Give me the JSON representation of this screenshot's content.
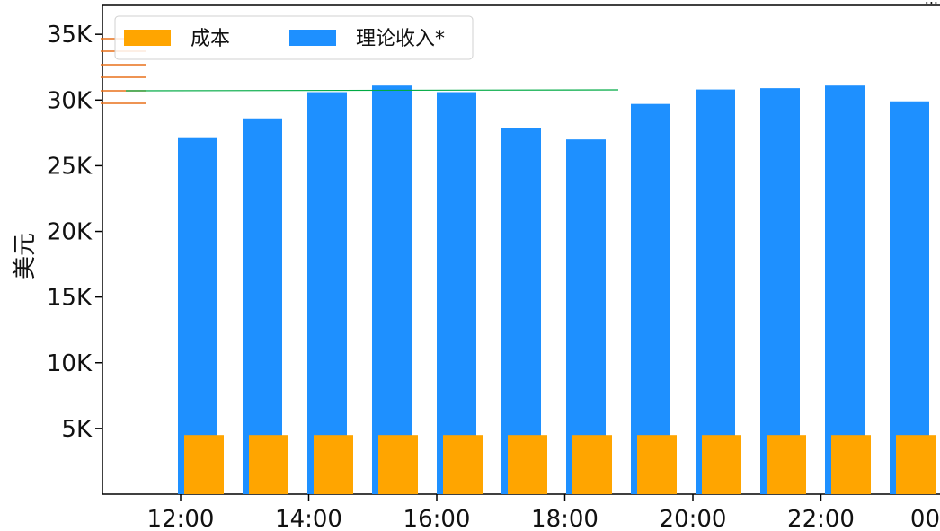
{
  "chart_data": {
    "type": "bar",
    "title": "",
    "xlabel": "",
    "ylabel": "美元",
    "x_tick_labels": [
      "12:00",
      "14:00",
      "16:00",
      "18:00",
      "20:00",
      "22:00",
      "00"
    ],
    "y_tick_labels": [
      "5K",
      "10K",
      "15K",
      "20K",
      "25K",
      "30K",
      "35K"
    ],
    "y_tick_values": [
      5000,
      10000,
      15000,
      20000,
      25000,
      30000,
      35000
    ],
    "ylim": [
      0,
      37200
    ],
    "grid": false,
    "legend_position": "top-left",
    "series": [
      {
        "name": "成本",
        "color": "#FFA500",
        "values": [
          4500,
          4500,
          4500,
          4500,
          4500,
          4500,
          4500,
          4500,
          4500,
          4500,
          4500,
          4500
        ]
      },
      {
        "name": "理论收入*",
        "color": "#1E90FF",
        "values": [
          27100,
          28600,
          30600,
          31100,
          30600,
          27900,
          27000,
          29700,
          30800,
          30900,
          31100,
          29900
        ]
      }
    ],
    "reference_line": {
      "value": 31000,
      "color": "#00AA44"
    },
    "top_right_text": "..."
  }
}
